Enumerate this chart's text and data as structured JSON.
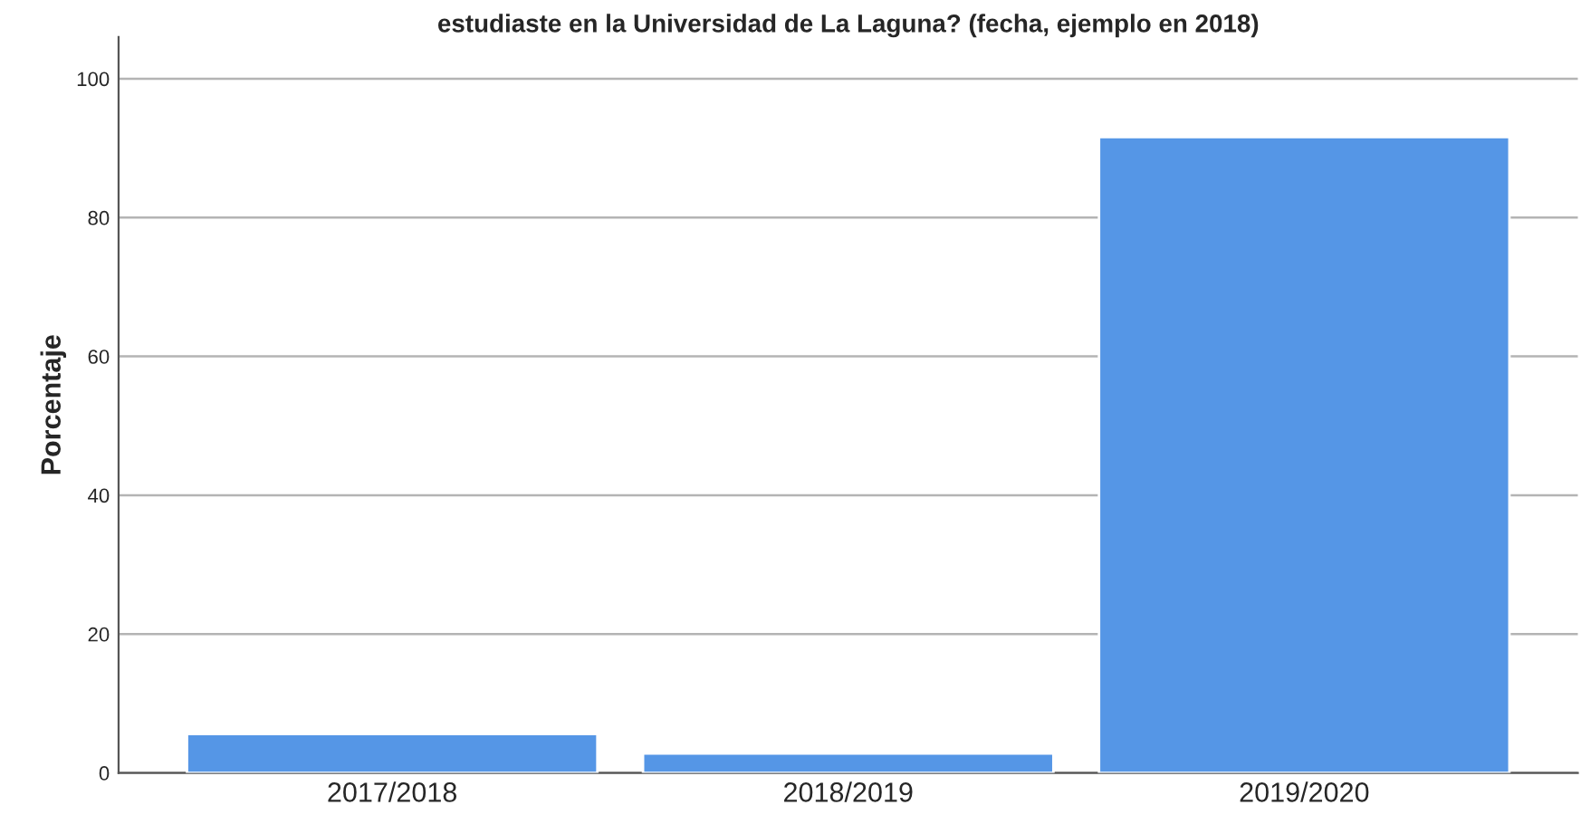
{
  "chart_data": {
    "type": "bar",
    "title": "estudiaste en la Universidad de La Laguna? (fecha, ejemplo en 2018)",
    "ylabel": "Porcentaje",
    "categories": [
      "2017/2018",
      "2018/2019",
      "2019/2020"
    ],
    "values": [
      5.6,
      2.8,
      91.6
    ],
    "color": "#5596e6",
    "ylim": [
      0,
      106
    ],
    "yticks": [
      0,
      20,
      40,
      60,
      80,
      100
    ],
    "grid": "y"
  }
}
